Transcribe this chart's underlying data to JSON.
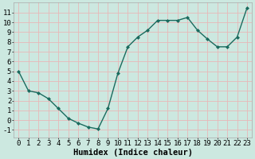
{
  "x": [
    0,
    1,
    2,
    3,
    4,
    5,
    6,
    7,
    8,
    9,
    10,
    11,
    12,
    13,
    14,
    15,
    16,
    17,
    18,
    19,
    20,
    21,
    22,
    23
  ],
  "y": [
    5.0,
    3.0,
    2.8,
    2.2,
    1.2,
    0.2,
    -0.3,
    -0.7,
    -0.9,
    1.2,
    4.8,
    7.5,
    8.5,
    9.2,
    10.2,
    10.2,
    10.2,
    10.5,
    9.2,
    8.3,
    7.5,
    7.5,
    8.5,
    11.5
  ],
  "line_color": "#1a6b5e",
  "marker": "D",
  "marker_size": 2.0,
  "bg_color": "#cce8e0",
  "grid_color": "#e8b8b8",
  "xlabel": "Humidex (Indice chaleur)",
  "xlabel_fontsize": 7.5,
  "tick_fontsize": 6.5,
  "ylim": [
    -1.8,
    12.0
  ],
  "xlim": [
    -0.5,
    23.5
  ],
  "yticks": [
    -1,
    0,
    1,
    2,
    3,
    4,
    5,
    6,
    7,
    8,
    9,
    10,
    11
  ],
  "xticks": [
    0,
    1,
    2,
    3,
    4,
    5,
    6,
    7,
    8,
    9,
    10,
    11,
    12,
    13,
    14,
    15,
    16,
    17,
    18,
    19,
    20,
    21,
    22,
    23
  ],
  "line_width": 1.0
}
